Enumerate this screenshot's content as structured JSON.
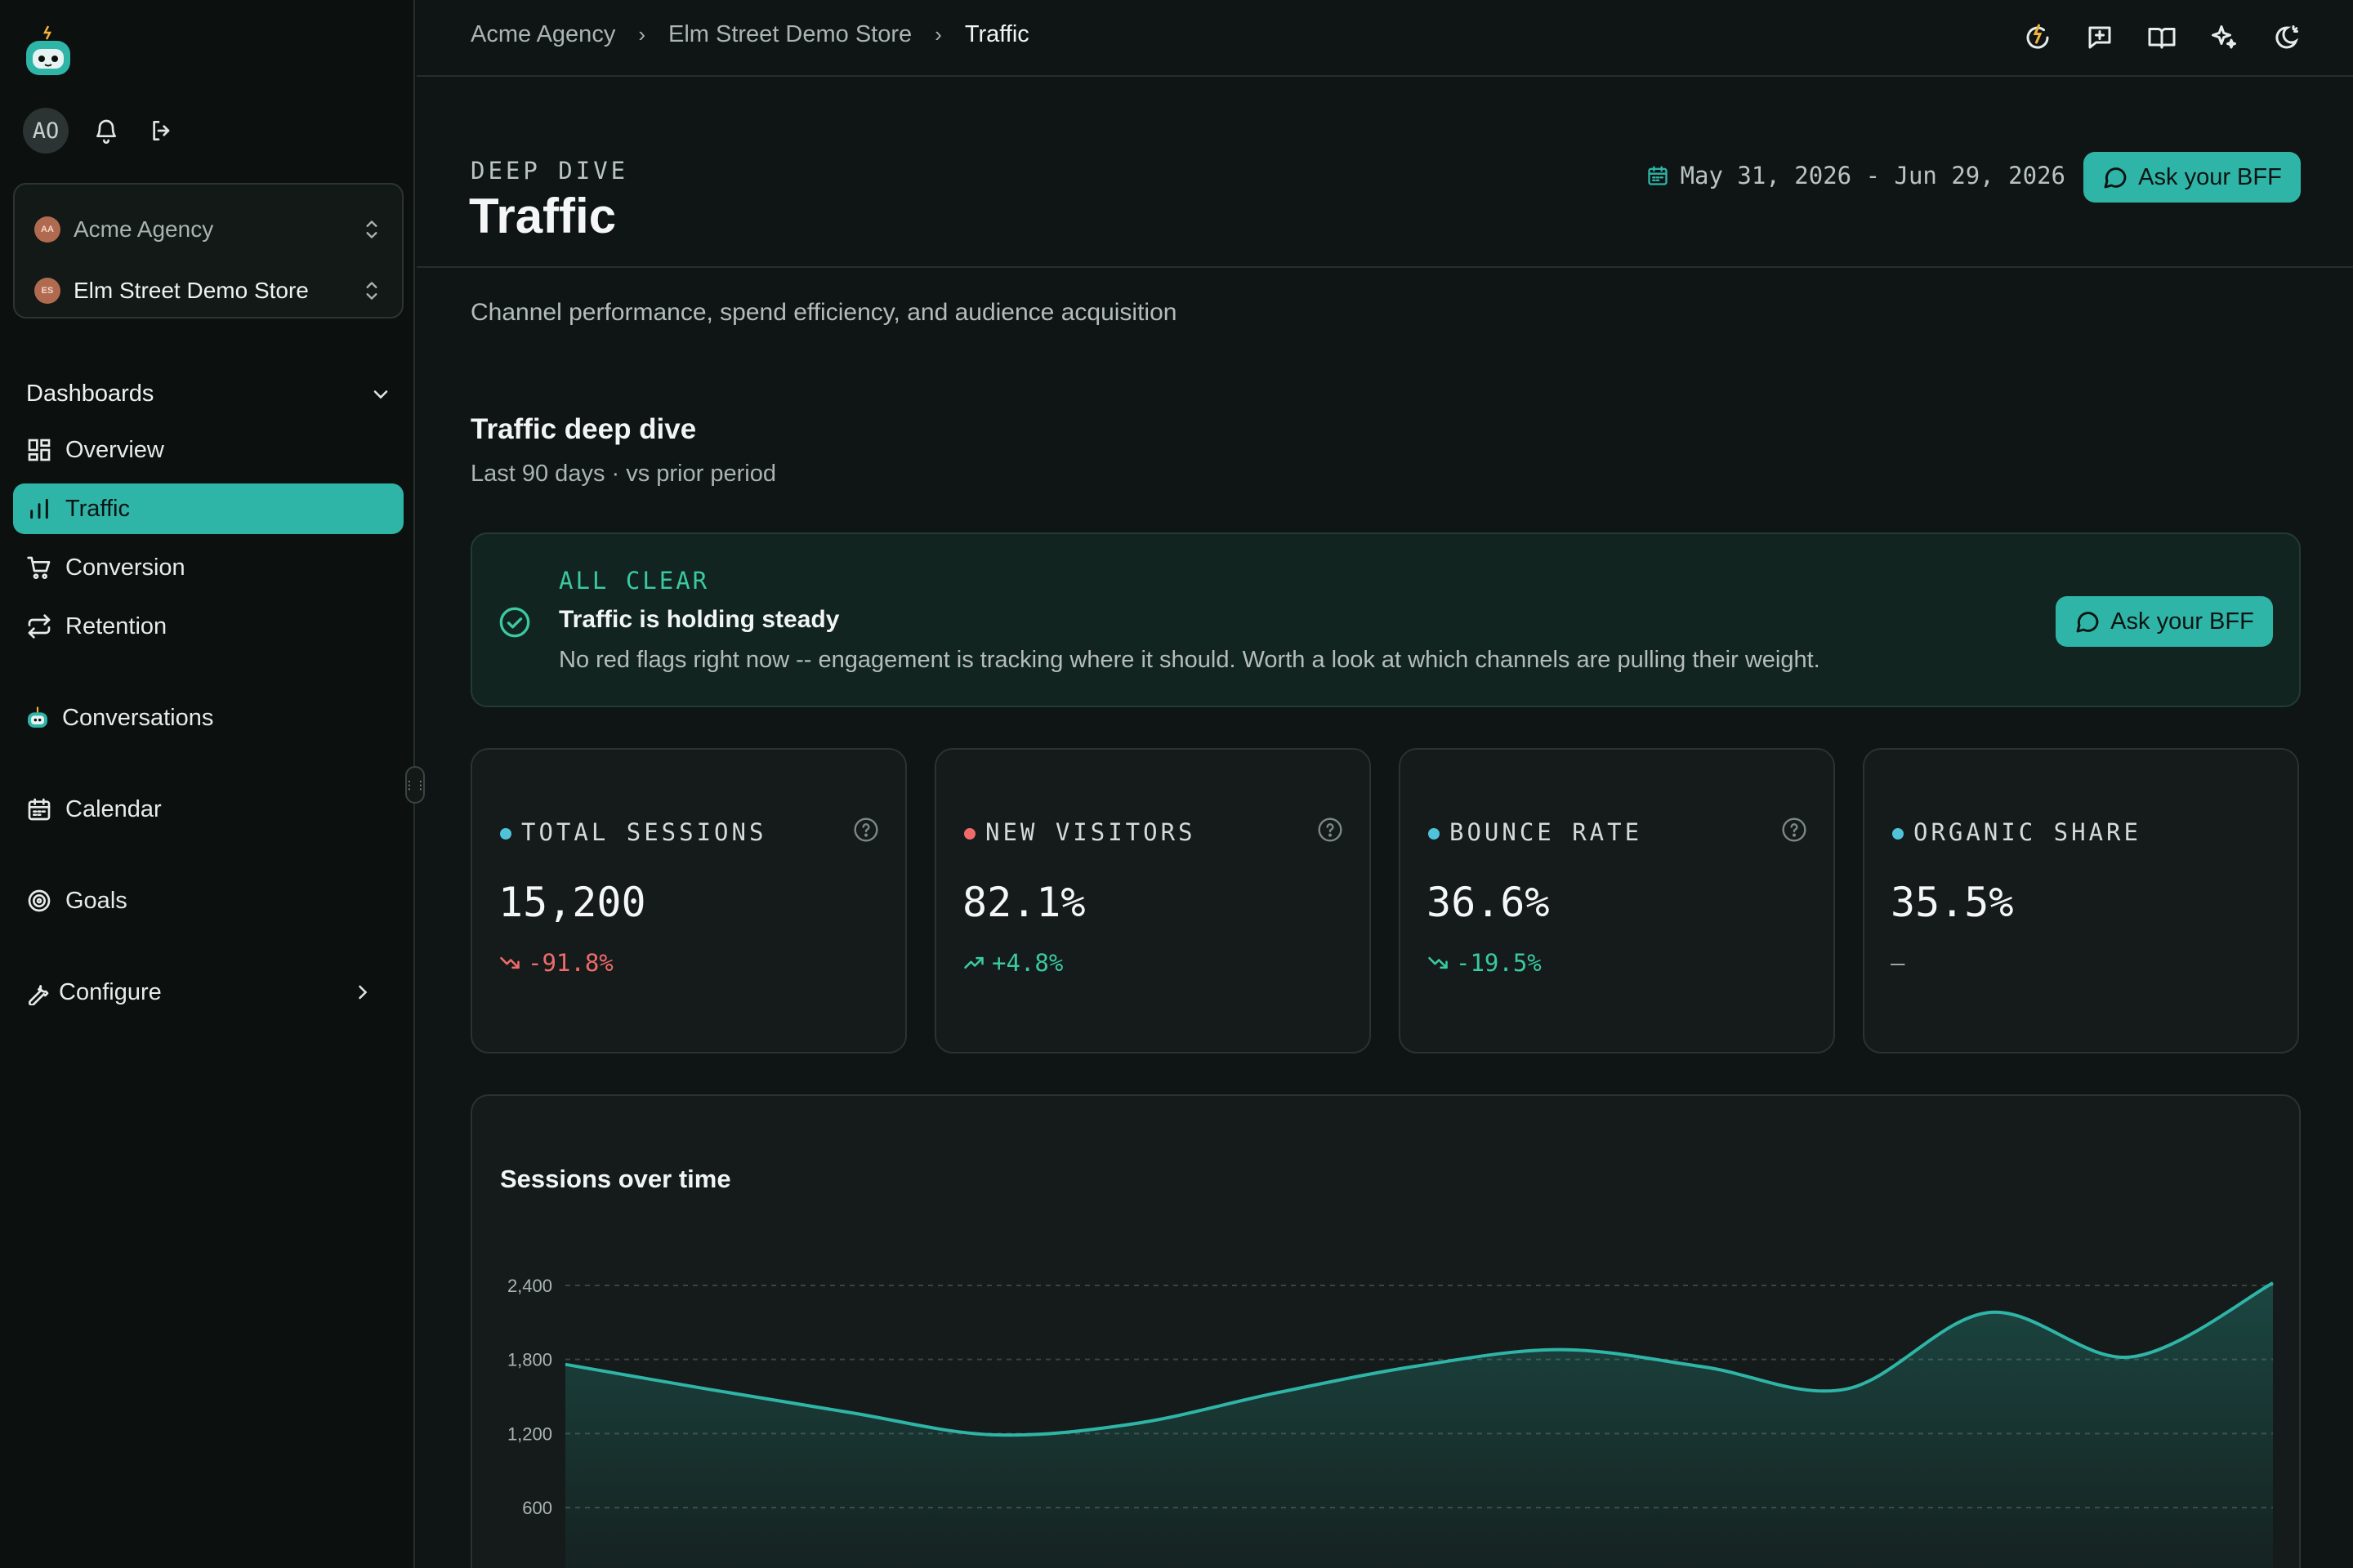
{
  "user": {
    "initials": "AO"
  },
  "orgs": {
    "agency": {
      "badge": "AA",
      "name": "Acme Agency"
    },
    "store": {
      "badge": "ES",
      "name": "Elm Street Demo Store"
    }
  },
  "sidebar": {
    "section_label": "Dashboards",
    "items": [
      {
        "label": "Overview",
        "icon": "grid-icon"
      },
      {
        "label": "Traffic",
        "icon": "bar-chart-icon",
        "active": true
      },
      {
        "label": "Conversion",
        "icon": "cart-icon"
      },
      {
        "label": "Retention",
        "icon": "repeat-icon"
      }
    ],
    "conversations": "Conversations",
    "calendar": "Calendar",
    "goals": "Goals",
    "configure": "Configure"
  },
  "breadcrumb": [
    "Acme Agency",
    "Elm Street Demo Store",
    "Traffic"
  ],
  "header": {
    "eyebrow": "DEEP DIVE",
    "title": "Traffic",
    "date_range": "May 31, 2026 - Jun 29, 2026",
    "ask_label": "Ask your BFF"
  },
  "subtitle": "Channel performance, spend efficiency, and audience acquisition",
  "section": {
    "title": "Traffic deep dive",
    "subtitle": "Last 90 days · vs prior period"
  },
  "alert": {
    "tag": "ALL CLEAR",
    "headline": "Traffic is holding steady",
    "body": "No red flags right now -- engagement is tracking where it should. Worth a look at which channels are pulling their weight.",
    "ask_label": "Ask your BFF"
  },
  "kpis": [
    {
      "label": "TOTAL SESSIONS",
      "value": "15,200",
      "delta": "-91.8%",
      "trend": "down",
      "tone": "neg",
      "dot_color": "#4fc3d9",
      "help": true
    },
    {
      "label": "NEW VISITORS",
      "value": "82.1%",
      "delta": "+4.8%",
      "trend": "up",
      "tone": "pos",
      "dot_color": "#ef6b6b",
      "help": true
    },
    {
      "label": "BOUNCE RATE",
      "value": "36.6%",
      "delta": "-19.5%",
      "trend": "down",
      "tone": "pos",
      "dot_color": "#4fc3d9",
      "help": true
    },
    {
      "label": "ORGANIC SHARE",
      "value": "35.5%",
      "delta": "–",
      "trend": "flat",
      "tone": "flat",
      "dot_color": "#4fc3d9",
      "help": false
    }
  ],
  "colors": {
    "accent": "#2fb5a7",
    "negative": "#ef6b6b",
    "positive": "#3ac9a0"
  },
  "chart_data": {
    "type": "area",
    "title": "Sessions over time",
    "ylim": [
      0,
      2400
    ],
    "yticks": [
      600,
      1200,
      1800,
      2400
    ],
    "grid": true,
    "x": [
      0,
      1,
      2,
      3,
      4,
      5,
      6,
      7,
      8,
      9,
      10,
      11,
      12
    ],
    "values": [
      1760,
      1560,
      1370,
      1190,
      1280,
      1530,
      1750,
      1880,
      1740,
      1560,
      2180,
      1820,
      2420
    ]
  }
}
